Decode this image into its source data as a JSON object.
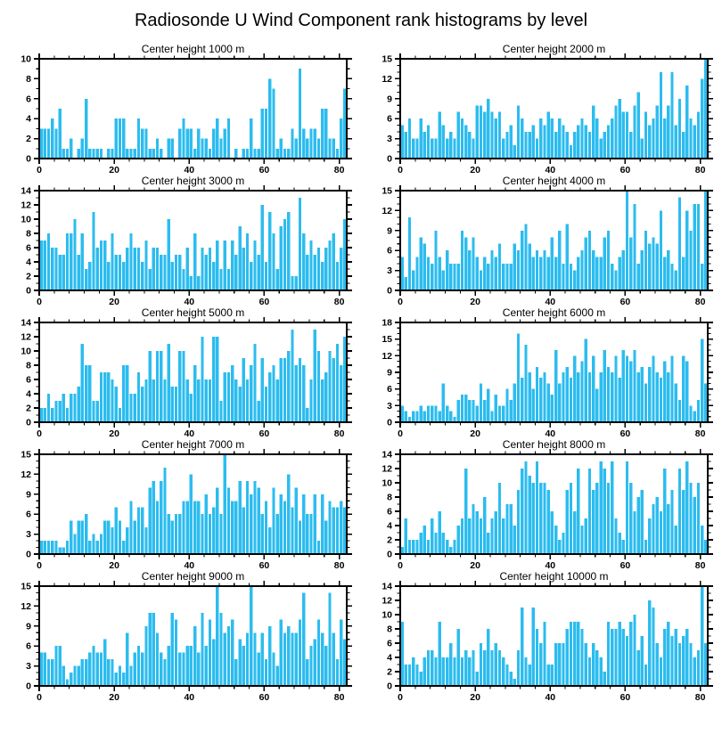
{
  "title": "Radiosonde U Wind Component rank histograms by level",
  "colors": {
    "bar": "#2CBCEF",
    "axis": "#000000",
    "background": "#FFFFFF"
  },
  "chart_data": [
    {
      "type": "bar",
      "title": "Center height 1000 m",
      "xlabel": "",
      "ylabel": "",
      "xlim": [
        0,
        82
      ],
      "ylim": [
        0,
        10
      ],
      "xticks": [
        0,
        20,
        40,
        60,
        80
      ],
      "x_minor_step": 4,
      "ytick_step": 2,
      "y_minor_step": 1,
      "values": [
        3,
        3,
        3,
        4,
        3,
        5,
        1,
        1,
        2,
        0,
        1,
        2,
        6,
        1,
        1,
        1,
        1,
        0,
        1,
        1,
        4,
        4,
        4,
        1,
        1,
        1,
        4,
        3,
        3,
        1,
        1,
        2,
        1,
        0,
        2,
        2,
        0,
        3,
        4,
        3,
        3,
        1,
        3,
        2,
        2,
        1,
        3,
        4,
        2,
        3,
        4,
        0,
        1,
        0,
        1,
        1,
        4,
        1,
        1,
        5,
        5,
        8,
        7,
        1,
        2,
        1,
        1,
        3,
        2,
        9,
        3,
        2,
        3,
        3,
        2,
        5,
        5,
        2,
        2,
        1,
        4,
        7
      ]
    },
    {
      "type": "bar",
      "title": "Center height 2000 m",
      "xlabel": "",
      "ylabel": "",
      "xlim": [
        0,
        82
      ],
      "ylim": [
        0,
        15
      ],
      "xticks": [
        0,
        20,
        40,
        60,
        80
      ],
      "x_minor_step": 4,
      "ytick_step": 3,
      "y_minor_step": 1,
      "values": [
        5,
        4,
        6,
        3,
        3,
        6,
        4,
        5,
        3,
        3,
        7,
        5,
        3,
        4,
        3,
        7,
        6,
        5,
        4,
        3,
        8,
        8,
        7,
        9,
        7,
        6,
        7,
        3,
        4,
        5,
        2,
        8,
        6,
        4,
        4,
        5,
        3,
        6,
        5,
        7,
        6,
        4,
        6,
        5,
        4,
        2,
        4,
        5,
        6,
        5,
        4,
        8,
        6,
        3,
        4,
        5,
        6,
        8,
        9,
        7,
        7,
        4,
        8,
        10,
        3,
        7,
        5,
        6,
        8,
        13,
        6,
        8,
        13,
        5,
        9,
        4,
        11,
        6,
        5,
        7,
        12,
        15
      ]
    },
    {
      "type": "bar",
      "title": "Center height 3000 m",
      "xlabel": "",
      "ylabel": "",
      "xlim": [
        0,
        82
      ],
      "ylim": [
        0,
        14
      ],
      "xticks": [
        0,
        20,
        40,
        60,
        80
      ],
      "x_minor_step": 4,
      "ytick_step": 2,
      "y_minor_step": 1,
      "values": [
        7,
        7,
        8,
        6,
        6,
        5,
        5,
        8,
        8,
        10,
        5,
        8,
        3,
        4,
        11,
        6,
        7,
        7,
        4,
        8,
        5,
        5,
        4,
        6,
        8,
        6,
        6,
        4,
        7,
        3,
        6,
        6,
        5,
        5,
        10,
        4,
        5,
        5,
        3,
        6,
        2,
        8,
        2,
        6,
        5,
        6,
        4,
        7,
        3,
        7,
        3,
        7,
        5,
        9,
        6,
        8,
        4,
        7,
        5,
        12,
        4,
        11,
        8,
        3,
        9,
        10,
        11,
        2,
        2,
        13,
        8,
        5,
        7,
        5,
        6,
        4,
        6,
        7,
        8,
        4,
        6,
        10
      ]
    },
    {
      "type": "bar",
      "title": "Center height 4000 m",
      "xlabel": "",
      "ylabel": "",
      "xlim": [
        0,
        82
      ],
      "ylim": [
        0,
        15
      ],
      "xticks": [
        0,
        20,
        40,
        60,
        80
      ],
      "x_minor_step": 4,
      "ytick_step": 3,
      "y_minor_step": 1,
      "values": [
        5,
        2,
        11,
        3,
        5,
        8,
        7,
        5,
        4,
        9,
        5,
        3,
        6,
        4,
        4,
        4,
        9,
        8,
        6,
        8,
        5,
        3,
        5,
        4,
        6,
        5,
        7,
        4,
        4,
        4,
        7,
        6,
        9,
        10,
        7,
        5,
        6,
        5,
        6,
        5,
        8,
        5,
        9,
        4,
        10,
        4,
        3,
        5,
        6,
        8,
        9,
        6,
        5,
        5,
        8,
        9,
        4,
        3,
        5,
        6,
        15,
        8,
        13,
        4,
        6,
        9,
        7,
        8,
        7,
        12,
        5,
        6,
        4,
        3,
        14,
        5,
        12,
        9,
        13,
        13,
        4,
        15
      ]
    },
    {
      "type": "bar",
      "title": "Center height 5000 m",
      "xlabel": "",
      "ylabel": "",
      "xlim": [
        0,
        82
      ],
      "ylim": [
        0,
        14
      ],
      "xticks": [
        0,
        20,
        40,
        60,
        80
      ],
      "x_minor_step": 4,
      "ytick_step": 2,
      "y_minor_step": 1,
      "values": [
        2,
        2,
        4,
        2,
        3,
        3,
        4,
        2,
        4,
        4,
        5,
        11,
        8,
        8,
        3,
        3,
        7,
        7,
        7,
        6,
        5,
        2,
        8,
        8,
        4,
        4,
        7,
        5,
        6,
        10,
        6,
        10,
        10,
        6,
        11,
        5,
        5,
        10,
        10,
        6,
        4,
        8,
        6,
        12,
        6,
        6,
        12,
        12,
        3,
        7,
        7,
        8,
        6,
        5,
        9,
        6,
        8,
        11,
        3,
        9,
        5,
        7,
        8,
        6,
        9,
        9,
        10,
        13,
        8,
        9,
        8,
        2,
        6,
        13,
        10,
        6,
        7,
        10,
        9,
        11,
        8,
        12
      ]
    },
    {
      "type": "bar",
      "title": "Center height 6000 m",
      "xlabel": "",
      "ylabel": "",
      "xlim": [
        0,
        82
      ],
      "ylim": [
        0,
        18
      ],
      "xticks": [
        0,
        20,
        40,
        60,
        80
      ],
      "x_minor_step": 4,
      "ytick_step": 3,
      "y_minor_step": 1,
      "values": [
        3,
        2,
        1,
        2,
        2,
        3,
        2,
        3,
        3,
        3,
        2,
        7,
        3,
        2,
        1,
        4,
        5,
        5,
        4,
        4,
        3,
        7,
        4,
        6,
        2,
        5,
        3,
        3,
        6,
        4,
        7,
        16,
        8,
        14,
        9,
        6,
        10,
        8,
        9,
        7,
        5,
        13,
        7,
        9,
        10,
        8,
        12,
        9,
        11,
        15,
        9,
        12,
        6,
        9,
        13,
        10,
        9,
        12,
        8,
        13,
        12,
        11,
        13,
        9,
        10,
        7,
        10,
        12,
        9,
        8,
        11,
        9,
        12,
        7,
        4,
        12,
        11,
        3,
        2,
        4,
        15,
        7
      ]
    },
    {
      "type": "bar",
      "title": "Center height 7000 m",
      "xlabel": "",
      "ylabel": "",
      "xlim": [
        0,
        82
      ],
      "ylim": [
        0,
        15
      ],
      "xticks": [
        0,
        20,
        40,
        60,
        80
      ],
      "x_minor_step": 4,
      "ytick_step": 3,
      "y_minor_step": 1,
      "values": [
        2,
        2,
        2,
        2,
        2,
        1,
        1,
        2,
        5,
        3,
        5,
        5,
        6,
        2,
        3,
        2,
        3,
        5,
        5,
        4,
        7,
        5,
        2,
        4,
        8,
        5,
        7,
        7,
        4,
        10,
        11,
        8,
        11,
        13,
        6,
        5,
        6,
        6,
        8,
        8,
        12,
        8,
        8,
        6,
        9,
        6,
        7,
        10,
        6,
        15,
        10,
        8,
        8,
        11,
        7,
        11,
        9,
        11,
        10,
        6,
        8,
        4,
        10,
        6,
        9,
        8,
        12,
        7,
        10,
        5,
        9,
        6,
        6,
        9,
        2,
        9,
        5,
        8,
        7,
        7,
        8,
        7
      ]
    },
    {
      "type": "bar",
      "title": "Center height 8000 m",
      "xlabel": "",
      "ylabel": "",
      "xlim": [
        0,
        82
      ],
      "ylim": [
        0,
        14
      ],
      "xticks": [
        0,
        20,
        40,
        60,
        80
      ],
      "x_minor_step": 4,
      "ytick_step": 2,
      "y_minor_step": 1,
      "values": [
        1,
        5,
        2,
        2,
        2,
        3,
        4,
        2,
        5,
        3,
        6,
        3,
        2,
        1,
        2,
        4,
        5,
        12,
        5,
        7,
        6,
        5,
        8,
        3,
        5,
        6,
        10,
        5,
        7,
        7,
        4,
        9,
        12,
        13,
        11,
        10,
        13,
        10,
        10,
        9,
        6,
        4,
        2,
        3,
        9,
        10,
        6,
        12,
        4,
        5,
        12,
        9,
        10,
        13,
        12,
        10,
        13,
        5,
        3,
        2,
        13,
        10,
        6,
        8,
        9,
        2,
        5,
        7,
        8,
        6,
        12,
        7,
        9,
        4,
        12,
        9,
        13,
        10,
        8,
        10,
        4,
        2
      ]
    },
    {
      "type": "bar",
      "title": "Center height 9000 m",
      "xlabel": "",
      "ylabel": "",
      "xlim": [
        0,
        82
      ],
      "ylim": [
        0,
        15
      ],
      "xticks": [
        0,
        20,
        40,
        60,
        80
      ],
      "x_minor_step": 4,
      "ytick_step": 3,
      "y_minor_step": 1,
      "values": [
        5,
        5,
        4,
        4,
        6,
        6,
        3,
        1,
        2,
        3,
        3,
        4,
        4,
        5,
        6,
        5,
        5,
        7,
        4,
        4,
        2,
        3,
        2,
        8,
        3,
        5,
        6,
        5,
        9,
        11,
        11,
        8,
        5,
        4,
        6,
        11,
        10,
        5,
        5,
        6,
        6,
        9,
        5,
        11,
        6,
        10,
        7,
        15,
        11,
        8,
        9,
        10,
        4,
        7,
        6,
        8,
        15,
        8,
        5,
        8,
        4,
        9,
        5,
        3,
        10,
        8,
        9,
        8,
        8,
        10,
        14,
        4,
        6,
        7,
        10,
        8,
        6,
        14,
        8,
        4,
        10,
        7
      ]
    },
    {
      "type": "bar",
      "title": "Center height 10000 m",
      "xlabel": "",
      "ylabel": "",
      "xlim": [
        0,
        82
      ],
      "ylim": [
        0,
        14
      ],
      "xticks": [
        0,
        20,
        40,
        60,
        80
      ],
      "x_minor_step": 4,
      "ytick_step": 2,
      "y_minor_step": 1,
      "values": [
        9,
        3,
        3,
        4,
        3,
        2,
        4,
        5,
        5,
        4,
        9,
        4,
        4,
        6,
        4,
        8,
        4,
        5,
        4,
        5,
        2,
        6,
        5,
        8,
        5,
        6,
        5,
        4,
        3,
        2,
        1,
        5,
        11,
        4,
        3,
        11,
        8,
        6,
        9,
        3,
        3,
        6,
        6,
        6,
        8,
        9,
        9,
        9,
        8,
        6,
        4,
        6,
        5,
        4,
        2,
        9,
        8,
        8,
        9,
        8,
        7,
        9,
        10,
        5,
        7,
        3,
        12,
        11,
        6,
        4,
        8,
        9,
        7,
        8,
        6,
        7,
        8,
        6,
        4,
        5,
        14,
        6
      ]
    }
  ]
}
